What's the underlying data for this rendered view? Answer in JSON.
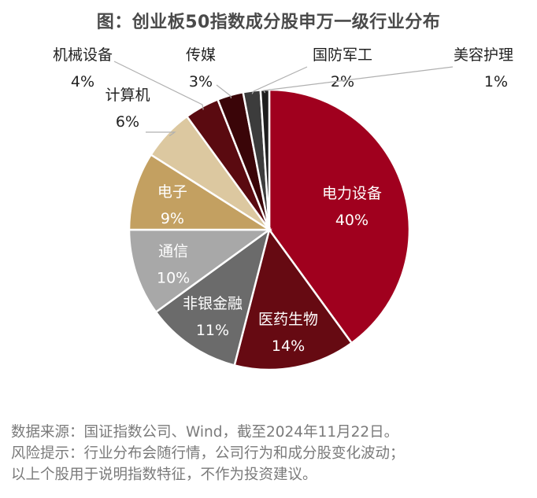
{
  "chart_data": {
    "type": "pie",
    "title": "图：创业板50指数成分股申万一级行业分布",
    "slices": [
      {
        "label": "电力设备",
        "value": 40,
        "display": "40%",
        "color": "#A0001E",
        "label_inside": true
      },
      {
        "label": "医药生物",
        "value": 14,
        "display": "14%",
        "color": "#660A12",
        "label_inside": true
      },
      {
        "label": "非银金融",
        "value": 11,
        "display": "11%",
        "color": "#6B6B6B",
        "label_inside": true
      },
      {
        "label": "通信",
        "value": 10,
        "display": "10%",
        "color": "#A8A8A8",
        "label_inside": true
      },
      {
        "label": "电子",
        "value": 9,
        "display": "9%",
        "color": "#C3A061",
        "label_inside": true
      },
      {
        "label": "计算机",
        "value": 6,
        "display": "6%",
        "color": "#DCC8A0",
        "label_inside": false
      },
      {
        "label": "机械设备",
        "value": 4,
        "display": "4%",
        "color": "#5A0A10",
        "label_inside": false
      },
      {
        "label": "传媒",
        "value": 3,
        "display": "3%",
        "color": "#3A0508",
        "label_inside": false
      },
      {
        "label": "国防军工",
        "value": 2,
        "display": "2%",
        "color": "#3C3C3C",
        "label_inside": false
      },
      {
        "label": "美容护理",
        "value": 1,
        "display": "1%",
        "color": "#1E1E1E",
        "label_inside": false
      }
    ]
  },
  "footnotes": [
    "数据来源：国证指数公司、Wind，截至2024年11月22日。",
    "风险提示：行业分布会随行情，公司行为和成分股变化波动；",
    "以上个股用于说明指数特征，不作为投资建议。"
  ]
}
